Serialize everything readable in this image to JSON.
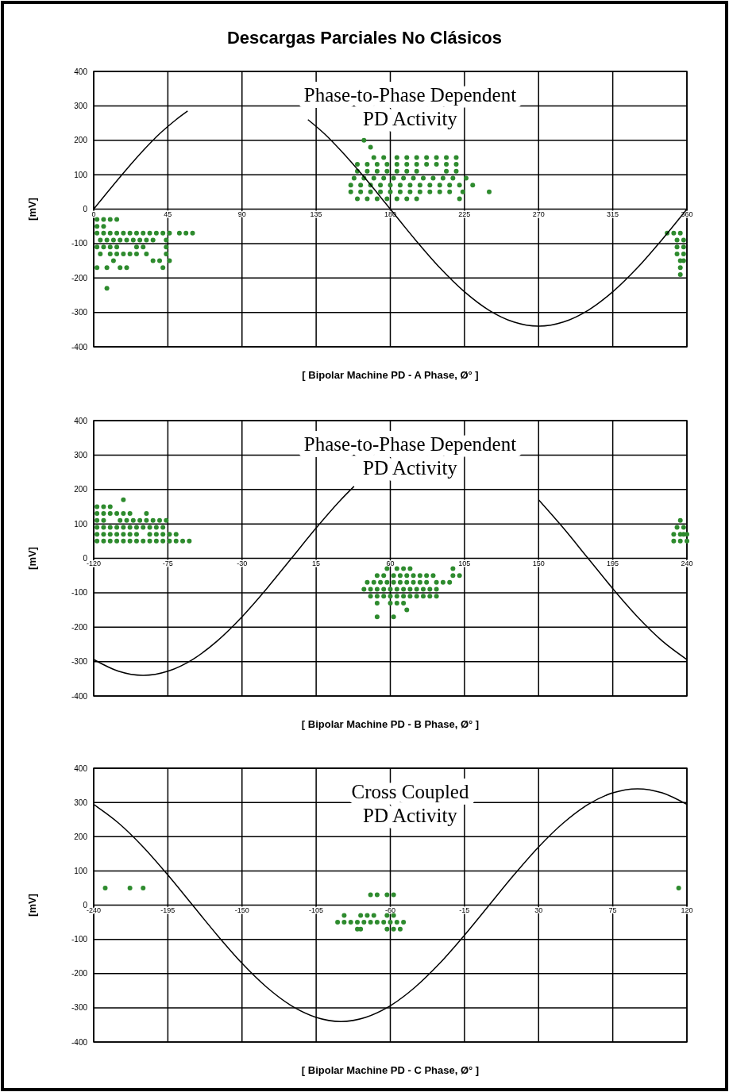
{
  "chart_data": [
    {
      "type": "scatter",
      "title": "Descargas Parciales No Clásicos",
      "xlabel": "[ Bipolar Machine PD - A Phase, Ø° ]",
      "ylabel": "[mV]",
      "annotations": [
        "Phase-to-Phase Dependent\nPD Activity"
      ],
      "xlim": [
        0,
        360
      ],
      "xticks": [
        0,
        45,
        90,
        135,
        180,
        225,
        270,
        315,
        360
      ],
      "ylim": [
        -400,
        400
      ],
      "yticks": [
        -400,
        -300,
        -200,
        -100,
        0,
        100,
        200,
        300,
        400
      ],
      "grid": true,
      "series": [
        {
          "type": "scatter",
          "marker": "circle",
          "color": "#2e8b2e",
          "x": [
            2,
            6,
            10,
            14,
            2,
            6,
            2,
            6,
            10,
            14,
            18,
            22,
            26,
            30,
            34,
            38,
            42,
            46,
            52,
            56,
            60,
            4,
            8,
            12,
            16,
            20,
            24,
            28,
            32,
            36,
            44,
            2,
            6,
            10,
            14,
            26,
            30,
            44,
            4,
            10,
            14,
            18,
            22,
            26,
            32,
            44,
            12,
            36,
            40,
            46,
            2,
            8,
            16,
            20,
            42,
            8,
            164,
            168,
            170,
            176,
            184,
            190,
            196,
            202,
            208,
            214,
            220,
            160,
            166,
            172,
            178,
            184,
            190,
            196,
            202,
            208,
            214,
            220,
            160,
            166,
            172,
            178,
            184,
            190,
            196,
            214,
            220,
            158,
            164,
            170,
            176,
            182,
            188,
            194,
            200,
            206,
            212,
            218,
            226,
            156,
            162,
            168,
            174,
            180,
            186,
            192,
            198,
            204,
            210,
            216,
            222,
            230,
            156,
            162,
            168,
            174,
            180,
            186,
            192,
            198,
            204,
            210,
            216,
            224,
            240,
            160,
            166,
            172,
            178,
            184,
            190,
            196,
            222,
            348,
            352,
            356,
            354,
            358,
            354,
            358,
            354,
            358,
            356,
            358,
            356,
            356
          ],
          "values": [
            -30,
            -30,
            -30,
            -30,
            -50,
            -50,
            -70,
            -70,
            -70,
            -70,
            -70,
            -70,
            -70,
            -70,
            -70,
            -70,
            -70,
            -70,
            -70,
            -70,
            -70,
            -90,
            -90,
            -90,
            -90,
            -90,
            -90,
            -90,
            -90,
            -90,
            -90,
            -110,
            -110,
            -110,
            -110,
            -110,
            -110,
            -110,
            -130,
            -130,
            -130,
            -130,
            -130,
            -130,
            -130,
            -130,
            -150,
            -150,
            -150,
            -150,
            -170,
            -170,
            -170,
            -170,
            -170,
            -230,
            200,
            180,
            150,
            150,
            150,
            150,
            150,
            150,
            150,
            150,
            150,
            130,
            130,
            130,
            130,
            130,
            130,
            130,
            130,
            130,
            130,
            130,
            110,
            110,
            110,
            110,
            110,
            110,
            110,
            110,
            110,
            90,
            90,
            90,
            90,
            90,
            90,
            90,
            90,
            90,
            90,
            90,
            90,
            70,
            70,
            70,
            70,
            70,
            70,
            70,
            70,
            70,
            70,
            70,
            70,
            70,
            50,
            50,
            50,
            50,
            50,
            50,
            50,
            50,
            50,
            50,
            50,
            50,
            50,
            30,
            30,
            30,
            30,
            30,
            30,
            30,
            30,
            -70,
            -70,
            -70,
            -90,
            -90,
            -110,
            -110,
            -130,
            -130,
            -150,
            -150,
            -170,
            -190
          ]
        },
        {
          "type": "line",
          "color": "#000000",
          "x": [
            0,
            10,
            20,
            30,
            40,
            50,
            57,
            90,
            130,
            140,
            150,
            165,
            180,
            195,
            210,
            225,
            240,
            255,
            270,
            285,
            300,
            315,
            330,
            345,
            360
          ],
          "values": [
            0,
            59,
            116,
            170,
            219,
            260,
            285,
            null,
            260,
            219,
            170,
            88,
            0,
            -88,
            -170,
            -240,
            -294,
            -328,
            -340,
            -328,
            -294,
            -240,
            -170,
            -88,
            0
          ]
        }
      ]
    },
    {
      "type": "scatter",
      "xlabel": "[ Bipolar Machine PD - B Phase, Ø° ]",
      "ylabel": "[mV]",
      "annotations": [
        "Phase-to-Phase Dependent\nPD Activity"
      ],
      "xlim": [
        -120,
        240
      ],
      "xticks": [
        -120,
        -75,
        -30,
        15,
        60,
        105,
        150,
        195,
        240
      ],
      "ylim": [
        -400,
        400
      ],
      "yticks": [
        -400,
        -300,
        -200,
        -100,
        0,
        100,
        200,
        300,
        400
      ],
      "grid": true,
      "series": [
        {
          "type": "scatter",
          "marker": "circle",
          "color": "#2e8b2e",
          "x": [
            -102,
            -118,
            -114,
            -110,
            -106,
            -118,
            -114,
            -110,
            -102,
            -98,
            -88,
            -118,
            -114,
            -104,
            -100,
            -96,
            -92,
            -88,
            -84,
            -80,
            -76,
            -118,
            -114,
            -110,
            -106,
            -102,
            -98,
            -94,
            -90,
            -86,
            -82,
            -78,
            -118,
            -114,
            -110,
            -106,
            -102,
            -98,
            -94,
            -86,
            -82,
            -78,
            -74,
            -70,
            -118,
            -114,
            -110,
            -106,
            -102,
            -98,
            -94,
            -90,
            -86,
            -82,
            -78,
            -74,
            -70,
            -66,
            -62,
            58,
            64,
            68,
            72,
            98,
            52,
            56,
            62,
            66,
            70,
            74,
            78,
            82,
            86,
            98,
            102,
            46,
            50,
            54,
            58,
            62,
            66,
            70,
            74,
            78,
            82,
            88,
            92,
            96,
            44,
            48,
            52,
            56,
            60,
            64,
            68,
            72,
            76,
            80,
            84,
            88,
            48,
            52,
            56,
            60,
            64,
            68,
            72,
            76,
            80,
            84,
            88,
            52,
            60,
            64,
            68,
            70,
            52,
            62,
            236,
            238,
            234,
            238,
            232,
            236,
            240,
            232,
            236,
            240
          ],
          "values": [
            170,
            150,
            150,
            150,
            130,
            130,
            130,
            130,
            130,
            130,
            130,
            110,
            110,
            110,
            110,
            110,
            110,
            110,
            110,
            110,
            110,
            90,
            90,
            90,
            90,
            90,
            90,
            90,
            90,
            90,
            90,
            90,
            70,
            70,
            70,
            70,
            70,
            70,
            70,
            70,
            70,
            70,
            70,
            70,
            50,
            50,
            50,
            50,
            50,
            50,
            50,
            50,
            50,
            50,
            50,
            50,
            50,
            50,
            50,
            -30,
            -30,
            -30,
            -30,
            -30,
            -50,
            -50,
            -50,
            -50,
            -50,
            -50,
            -50,
            -50,
            -50,
            -50,
            -50,
            -70,
            -70,
            -70,
            -70,
            -70,
            -70,
            -70,
            -70,
            -70,
            -70,
            -70,
            -70,
            -70,
            -90,
            -90,
            -90,
            -90,
            -90,
            -90,
            -90,
            -90,
            -90,
            -90,
            -90,
            -90,
            -110,
            -110,
            -110,
            -110,
            -110,
            -110,
            -110,
            -110,
            -110,
            -110,
            -110,
            -130,
            -130,
            -130,
            -130,
            -150,
            -170,
            -170,
            110,
            90,
            90,
            70,
            70,
            70,
            70,
            50,
            50,
            50
          ]
        },
        {
          "type": "line",
          "color": "#000000",
          "x": [
            -120,
            -105,
            -90,
            -75,
            -60,
            -45,
            -30,
            -15,
            0,
            15,
            30,
            38,
            90,
            150,
            165,
            180,
            195,
            210,
            225,
            240
          ],
          "values": [
            -294,
            -328,
            -340,
            -328,
            -294,
            -240,
            -170,
            -88,
            0,
            88,
            170,
            209,
            null,
            170,
            88,
            0,
            -88,
            -170,
            -240,
            -294
          ]
        }
      ]
    },
    {
      "type": "scatter",
      "xlabel": "[ Bipolar Machine PD - C Phase, Ø° ]",
      "ylabel": "[mV]",
      "annotations": [
        "Cross Coupled\nPD Activity"
      ],
      "xlim": [
        -240,
        120
      ],
      "xticks": [
        -240,
        -195,
        -150,
        -105,
        -60,
        -15,
        30,
        75,
        120
      ],
      "ylim": [
        -400,
        400
      ],
      "yticks": [
        -400,
        -300,
        -200,
        -100,
        0,
        100,
        200,
        300,
        400
      ],
      "grid": true,
      "series": [
        {
          "type": "scatter",
          "marker": "circle",
          "color": "#2e8b2e",
          "x": [
            -233,
            -218,
            -210,
            115,
            -72,
            -68,
            -62,
            -58,
            -88,
            -78,
            -74,
            -70,
            -62,
            -58,
            -92,
            -88,
            -84,
            -80,
            -76,
            -72,
            -68,
            -64,
            -60,
            -56,
            -52,
            -80,
            -78,
            -62,
            -58,
            -54
          ],
          "values": [
            50,
            50,
            50,
            50,
            30,
            30,
            30,
            30,
            -30,
            -30,
            -30,
            -30,
            -30,
            -30,
            -50,
            -50,
            -50,
            -50,
            -50,
            -50,
            -50,
            -50,
            -50,
            -50,
            -50,
            -70,
            -70,
            -70,
            -70,
            -70
          ]
        },
        {
          "type": "line",
          "color": "#000000",
          "x": [
            -240,
            -225,
            -210,
            -195,
            -180,
            -165,
            -150,
            -135,
            -120,
            -105,
            -90,
            -75,
            -60,
            -45,
            -30,
            -15,
            0,
            15,
            30,
            45,
            60,
            75,
            90,
            105,
            120
          ],
          "values": [
            294,
            240,
            170,
            88,
            0,
            -88,
            -170,
            -240,
            -294,
            -328,
            -340,
            -328,
            -294,
            -240,
            -170,
            -88,
            0,
            88,
            170,
            240,
            294,
            328,
            340,
            328,
            294
          ]
        }
      ]
    }
  ]
}
